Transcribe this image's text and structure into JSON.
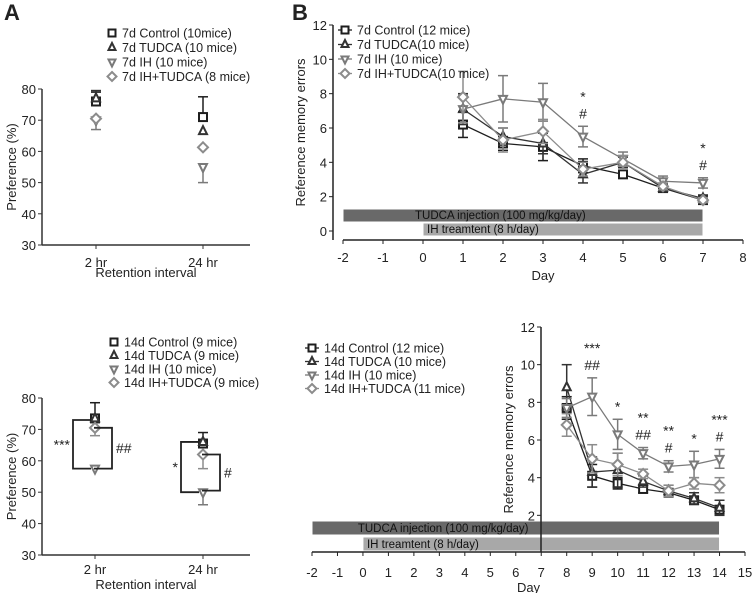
{
  "panels": {
    "a": "A",
    "b": "B"
  },
  "colors": {
    "control": "#1e1e1e",
    "tudca": "#333333",
    "ih": "#7a7a7a",
    "ih_tudca": "#8c8c8c",
    "tudca_bar": "#696969",
    "ih_bar": "#a8a8a8"
  },
  "chart_data": [
    {
      "id": "a7",
      "type": "scatter",
      "xlabel": "Retention interval",
      "ylabel": "Preference (%)",
      "ylim": [
        30,
        80
      ],
      "yticks": [
        "30",
        "40",
        "50",
        "60",
        "70",
        "80"
      ],
      "categories": [
        "2 hr",
        "24 hr"
      ],
      "legend_position": "top",
      "series": [
        {
          "name": "7d Control (10mice)",
          "marker": "square",
          "color": "control",
          "values": [
            76,
            71
          ],
          "err": [
            3,
            6.5
          ],
          "errdir": [
            "up",
            "up"
          ]
        },
        {
          "name": "7d TUDCA (10 mice)",
          "marker": "triangle-up",
          "color": "tudca",
          "values": [
            77,
            66.5
          ],
          "err": [
            2.5,
            0
          ],
          "errdir": [
            "up",
            "up"
          ]
        },
        {
          "name": "7d IH (10 mice)",
          "marker": "triangle-down",
          "color": "ih",
          "values": [
            70,
            55
          ],
          "err": [
            3,
            5
          ],
          "errdir": [
            "down",
            "down"
          ]
        },
        {
          "name": "7d IH+TUDCA (8 mice)",
          "marker": "diamond",
          "color": "ih_tudca",
          "values": [
            70.5,
            61.3
          ],
          "err": [
            0,
            0
          ],
          "errdir": [
            "down",
            "down"
          ]
        }
      ],
      "brackets": []
    },
    {
      "id": "a14",
      "type": "scatter",
      "xlabel": "Retention interval",
      "ylabel": "Preference (%)",
      "ylim": [
        30,
        80
      ],
      "yticks": [
        "30",
        "40",
        "50",
        "60",
        "70",
        "80"
      ],
      "categories": [
        "2 hr",
        "24 hr"
      ],
      "legend_position": "top",
      "series": [
        {
          "name": "14d Control (9 mice)",
          "marker": "square",
          "color": "control",
          "values": [
            73.5,
            65.5
          ],
          "err": [
            5,
            3.5
          ],
          "errdir": [
            "up",
            "up"
          ]
        },
        {
          "name": "14d TUDCA (9 mice)",
          "marker": "triangle-up",
          "color": "tudca",
          "values": [
            73.5,
            66
          ],
          "err": [
            0,
            0
          ],
          "errdir": [
            "up",
            "up"
          ]
        },
        {
          "name": "14d IH (10 mice)",
          "marker": "triangle-down",
          "color": "ih",
          "values": [
            57.5,
            50
          ],
          "err": [
            0,
            4
          ],
          "errdir": [
            "down",
            "down"
          ]
        },
        {
          "name": "14d IH+TUDCA (9 mice)",
          "marker": "diamond",
          "color": "ih_tudca",
          "values": [
            70.5,
            62
          ],
          "err": [
            2.5,
            4.5
          ],
          "errdir": [
            "down",
            "down"
          ]
        }
      ],
      "brackets": [
        {
          "category": 0,
          "side": "left",
          "from": 73,
          "to": 57.5,
          "label": "***"
        },
        {
          "category": 0,
          "side": "right",
          "from": 70.5,
          "to": 57.5,
          "label": "##"
        },
        {
          "category": 1,
          "side": "left",
          "from": 66,
          "to": 50,
          "label": "*"
        },
        {
          "category": 1,
          "side": "right",
          "from": 62,
          "to": 50.5,
          "label": "#"
        }
      ]
    },
    {
      "id": "b7",
      "type": "line",
      "xlabel": "Day",
      "ylabel": "Reference memory errors",
      "xlim": [
        -2,
        8
      ],
      "ylim": [
        0,
        12
      ],
      "xticks": [
        "-2",
        "-1",
        "0",
        "1",
        "2",
        "3",
        "4",
        "5",
        "6",
        "7",
        "8"
      ],
      "yticks": [
        "0",
        "2",
        "4",
        "6",
        "8",
        "10",
        "12"
      ],
      "legend_position": "top-left",
      "x": [
        1,
        2,
        3,
        4,
        5,
        6,
        7
      ],
      "series": [
        {
          "name": "7d Control (12 mice)",
          "marker": "square",
          "color": "control",
          "values": [
            6.2,
            5.1,
            4.9,
            3.8,
            3.3,
            2.5,
            1.8
          ],
          "err": [
            0.75,
            0.4,
            0.8,
            0.4,
            0.2,
            0.2,
            0.15
          ]
        },
        {
          "name": "7d TUDCA(10 mice)",
          "marker": "triangle-up",
          "color": "tudca",
          "values": [
            7.1,
            5.5,
            5.1,
            3.3,
            4.0,
            2.5,
            1.9
          ],
          "err": [
            0.9,
            0.5,
            0.6,
            0.5,
            0.3,
            0.2,
            0.2
          ]
        },
        {
          "name": "7d IH (10 mice)",
          "marker": "triangle-down",
          "color": "ih",
          "values": [
            7.1,
            7.7,
            7.5,
            5.5,
            4.2,
            2.9,
            2.8
          ],
          "err": [
            0.8,
            1.35,
            1.1,
            0.6,
            0.4,
            0.3,
            0.3
          ]
        },
        {
          "name": "7d IH+TUDCA(10 mice)",
          "marker": "diamond",
          "color": "ih_tudca",
          "values": [
            7.8,
            5.3,
            5.8,
            3.6,
            4.0,
            2.6,
            1.8
          ],
          "err": [
            1.5,
            0.7,
            0.7,
            0.4,
            0.4,
            0.2,
            0.15
          ]
        }
      ],
      "annotations": [
        {
          "x": 4,
          "lines": [
            "*",
            "#"
          ]
        },
        {
          "x": 7,
          "lines": [
            "*",
            "#"
          ]
        }
      ],
      "bars": [
        {
          "label": "TUDCA injection (100 mg/kg/day)",
          "from": -2,
          "to": 7,
          "color": "tudca_bar"
        },
        {
          "label": "IH treamtent (8 h/day)",
          "from": 0,
          "to": 7,
          "color": "ih_bar"
        }
      ]
    },
    {
      "id": "b14",
      "type": "line",
      "xlabel": "Day",
      "ylabel": "Reference memory errors",
      "xlim": [
        -2,
        15
      ],
      "ylim": [
        0,
        12
      ],
      "xticks": [
        "-2",
        "-1",
        "0",
        "1",
        "2",
        "3",
        "4",
        "5",
        "6",
        "7",
        "8",
        "9",
        "10",
        "11",
        "12",
        "13",
        "14",
        "15"
      ],
      "yticks": [
        "2",
        "4",
        "6",
        "8",
        "10",
        "12"
      ],
      "legend_position": "top-left",
      "x": [
        8,
        9,
        10,
        11,
        12,
        13,
        14
      ],
      "series": [
        {
          "name": "14d Control (12 mice)",
          "marker": "square",
          "color": "control",
          "values": [
            7.7,
            4.1,
            3.7,
            3.4,
            3.2,
            2.8,
            2.3
          ],
          "err": [
            0.6,
            0.6,
            0.3,
            0.2,
            0.15,
            0.2,
            0.2
          ]
        },
        {
          "name": "14d TUDCA (10 mice)",
          "marker": "triangle-up",
          "color": "tudca",
          "values": [
            8.8,
            4.3,
            4.4,
            3.8,
            3.3,
            2.9,
            2.4
          ],
          "err": [
            1.2,
            0.8,
            0.9,
            0.3,
            0.3,
            0.3,
            0.4
          ]
        },
        {
          "name": "14d IH (10 mice)",
          "marker": "triangle-down",
          "color": "ih",
          "values": [
            7.7,
            8.3,
            6.3,
            5.3,
            4.6,
            4.7,
            5.0
          ],
          "err": [
            0.5,
            1.0,
            0.8,
            0.3,
            0.3,
            0.7,
            0.5
          ]
        },
        {
          "name": "14d IH+TUDCA (11 mice)",
          "marker": "diamond",
          "color": "ih_tudca",
          "values": [
            6.8,
            5.0,
            4.7,
            4.2,
            3.3,
            3.7,
            3.6
          ],
          "err": [
            0.6,
            0.75,
            0.6,
            0.25,
            0.3,
            0.3,
            0.4
          ]
        }
      ],
      "annotations": [
        {
          "x": 9,
          "lines": [
            "***",
            "##"
          ]
        },
        {
          "x": 10,
          "lines": [
            "*"
          ]
        },
        {
          "x": 11,
          "lines": [
            "**",
            "##"
          ]
        },
        {
          "x": 12,
          "lines": [
            "**",
            "#"
          ]
        },
        {
          "x": 13,
          "lines": [
            "*"
          ]
        },
        {
          "x": 14,
          "lines": [
            "***",
            "#"
          ]
        }
      ],
      "bars": [
        {
          "label": "TUDCA injection (100 mg/kg/day)",
          "from": -2,
          "to": 14,
          "color": "tudca_bar"
        },
        {
          "label": "IH treamtent (8 h/day)",
          "from": 0,
          "to": 14,
          "color": "ih_bar"
        }
      ]
    }
  ]
}
